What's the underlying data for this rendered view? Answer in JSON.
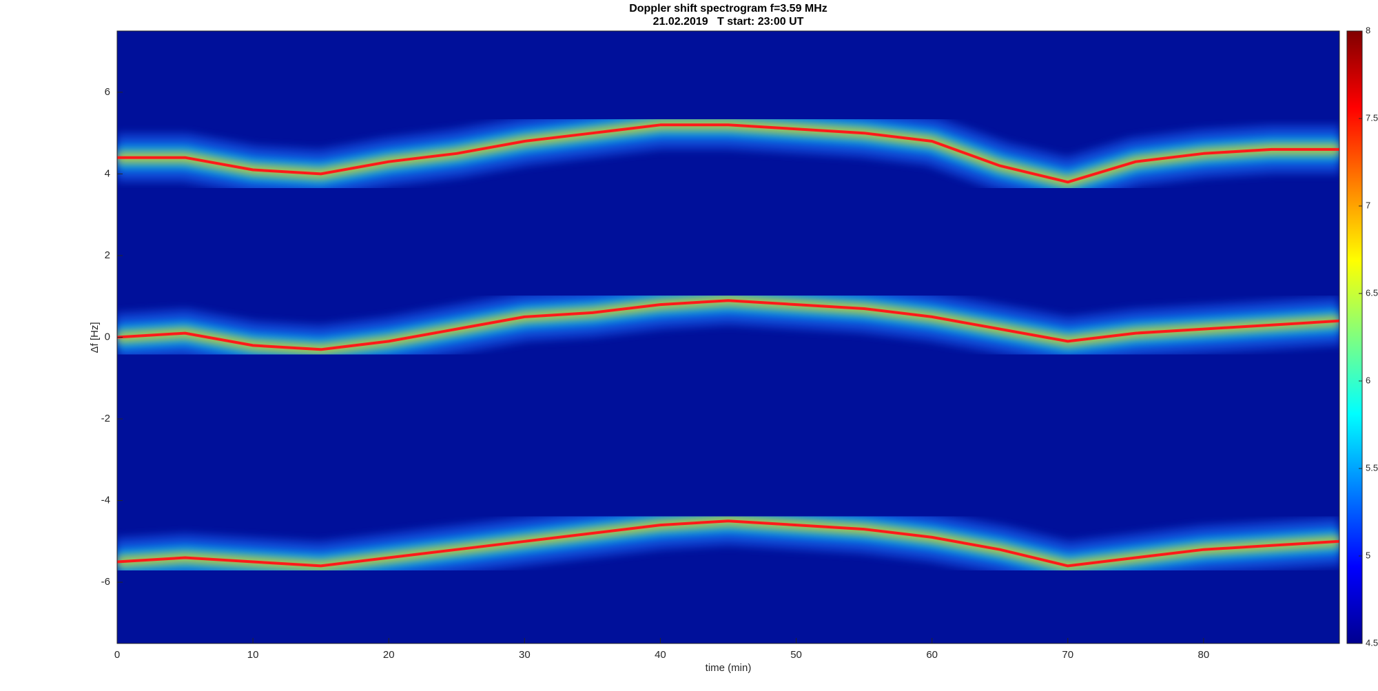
{
  "chart_data": {
    "type": "line",
    "title": "Doppler shift spectrogram f=3.59 MHz",
    "subtitle": "21.02.2019   T start: 23:00 UT",
    "x_label": "time (min)",
    "y_label": "Δf [Hz]",
    "x": [
      0,
      5,
      10,
      15,
      20,
      25,
      30,
      35,
      40,
      45,
      50,
      55,
      60,
      65,
      70,
      75,
      80,
      85,
      90
    ],
    "series": [
      {
        "color": "#ff1a1a",
        "values": [
          4.4,
          4.4,
          4.1,
          4.0,
          4.3,
          4.5,
          4.8,
          5.0,
          5.2,
          5.2,
          5.1,
          5.0,
          4.8,
          4.2,
          3.8,
          4.3,
          4.5,
          4.6,
          4.6
        ]
      },
      {
        "color": "#ff1a1a",
        "values": [
          0.0,
          0.1,
          -0.2,
          -0.3,
          -0.1,
          0.2,
          0.5,
          0.6,
          0.8,
          0.9,
          0.8,
          0.7,
          0.5,
          0.2,
          -0.1,
          0.1,
          0.2,
          0.3,
          0.4
        ]
      },
      {
        "color": "#ff1a1a",
        "values": [
          -5.5,
          -5.4,
          -5.5,
          -5.6,
          -5.4,
          -5.2,
          -5.0,
          -4.8,
          -4.6,
          -4.5,
          -4.6,
          -4.7,
          -4.9,
          -5.2,
          -5.6,
          -5.4,
          -5.2,
          -5.1,
          -5.0
        ]
      }
    ],
    "xlim": [
      0,
      90
    ],
    "xticks": [
      0,
      10,
      20,
      30,
      40,
      50,
      60,
      70,
      80
    ],
    "ylim": [
      -7.5,
      7.5
    ],
    "yticks": [
      -6,
      -4,
      -2,
      0,
      2,
      4,
      6
    ],
    "background_color": "#00109a",
    "colormap": "jet",
    "clim": [
      4.5,
      8
    ],
    "cticks": [
      4.5,
      5,
      5.5,
      6,
      6.5,
      7,
      7.5,
      8
    ]
  }
}
